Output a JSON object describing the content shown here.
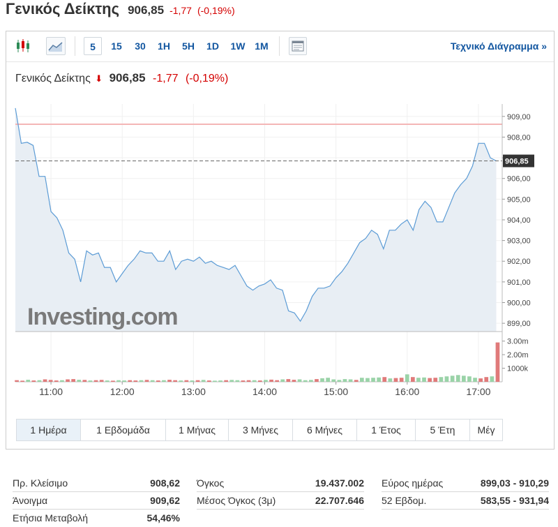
{
  "header": {
    "name": "Γενικός Δείκτης",
    "price": "906,85",
    "change": "-1,77",
    "change_pct": "(-0,19%)"
  },
  "toolbar": {
    "timeframes": [
      "5",
      "15",
      "30",
      "1H",
      "5H",
      "1D",
      "1W",
      "1M"
    ],
    "active_timeframe": "5",
    "technical_link": "Τεχνικό Διάγραμμα »"
  },
  "inner_title": {
    "name": "Γενικός Δείκτης",
    "price": "906,85",
    "change": "-1,77",
    "change_pct": "(-0,19%)"
  },
  "watermark": "Investing.com",
  "colors": {
    "line": "#5b9bd5",
    "area": "#e8eef4",
    "down": "#d40000",
    "vol_up": "#9ad3a8",
    "vol_down": "#e07a7a",
    "prev_close_line": "#f4b6b6",
    "link": "#1256a0"
  },
  "ranges": [
    "1 Ημέρα",
    "1 Εβδομάδα",
    "1 Μήνας",
    "3 Μήνες",
    "6 Μήνες",
    "1 Έτος",
    "5 Έτη",
    "Μέγ"
  ],
  "active_range": "1 Ημέρα",
  "stats": {
    "col1": [
      {
        "label": "Πρ. Κλείσιμο",
        "value": "908,62"
      },
      {
        "label": "Άνοιγμα",
        "value": "909,62"
      },
      {
        "label": "Ετήσια Μεταβολή",
        "value": "54,46%"
      }
    ],
    "col2": [
      {
        "label": "Όγκος",
        "value": "19.437.002"
      },
      {
        "label": "Μέσος Όγκος (3μ)",
        "value": "22.707.646"
      }
    ],
    "col3": [
      {
        "label": "Εύρος ημέρας",
        "value": "899,03 - 910,29"
      },
      {
        "label": "52 Εβδομ.",
        "value": "583,55 - 931,94"
      }
    ]
  },
  "chart_data": {
    "type": "area",
    "title": "Γενικός Δείκτης",
    "x_ticks": [
      "11:00",
      "12:00",
      "13:00",
      "14:00",
      "15:00",
      "16:00",
      "17:00"
    ],
    "x_start": "10:30",
    "x_end": "17:20",
    "y_ticks": [
      "899,00",
      "900,00",
      "901,00",
      "902,00",
      "903,00",
      "904,00",
      "905,00",
      "906,00",
      "907,00",
      "908,00",
      "909,00"
    ],
    "ylim": [
      898.6,
      909.6
    ],
    "current_value": 906.85,
    "current_label": "906,85",
    "prev_close": 908.62,
    "series": [
      {
        "x": [
          "10:30",
          "10:35",
          "10:40",
          "10:45",
          "10:50",
          "10:55",
          "11:00",
          "11:05",
          "11:10",
          "11:15",
          "11:20",
          "11:25",
          "11:30",
          "11:35",
          "11:40",
          "11:45",
          "11:50",
          "11:55",
          "12:00",
          "12:05",
          "12:10",
          "12:15",
          "12:20",
          "12:25",
          "12:30",
          "12:35",
          "12:40",
          "12:45",
          "12:50",
          "12:55",
          "13:00",
          "13:05",
          "13:10",
          "13:15",
          "13:20",
          "13:25",
          "13:30",
          "13:35",
          "13:40",
          "13:45",
          "13:50",
          "13:55",
          "14:00",
          "14:05",
          "14:10",
          "14:15",
          "14:20",
          "14:25",
          "14:30",
          "14:35",
          "14:40",
          "14:45",
          "14:50",
          "14:55",
          "15:00",
          "15:05",
          "15:10",
          "15:15",
          "15:20",
          "15:25",
          "15:30",
          "15:35",
          "15:40",
          "15:45",
          "15:50",
          "15:55",
          "16:00",
          "16:05",
          "16:10",
          "16:15",
          "16:20",
          "16:25",
          "16:30",
          "16:35",
          "16:40",
          "16:45",
          "16:50",
          "16:55",
          "17:00",
          "17:05",
          "17:10",
          "17:15"
        ],
        "values": [
          909.4,
          907.7,
          907.75,
          907.6,
          906.1,
          906.1,
          904.4,
          904.1,
          903.5,
          902.4,
          902.1,
          901.0,
          902.5,
          902.3,
          902.4,
          901.7,
          901.7,
          901.0,
          901.4,
          901.8,
          902.1,
          902.5,
          902.4,
          902.4,
          902.0,
          902.0,
          902.5,
          901.6,
          902.0,
          902.1,
          902.0,
          902.2,
          901.9,
          902.0,
          901.8,
          901.7,
          901.6,
          901.8,
          901.3,
          900.8,
          900.6,
          900.8,
          900.9,
          901.1,
          900.7,
          900.6,
          899.6,
          899.5,
          899.1,
          899.6,
          900.3,
          900.7,
          900.7,
          900.8,
          901.2,
          901.5,
          901.9,
          902.4,
          902.9,
          903.1,
          903.5,
          903.3,
          902.6,
          903.5,
          903.5,
          903.8,
          904.0,
          903.5,
          904.5,
          904.9,
          904.6,
          903.9,
          903.9,
          904.6,
          905.3,
          905.7,
          906.0,
          906.6,
          907.7,
          907.7,
          907.0,
          906.85
        ]
      }
    ],
    "volume": {
      "y_ticks": [
        "1000k",
        "2.00m",
        "3.00m"
      ],
      "ylim": [
        0,
        3.6
      ],
      "values_m": [
        0.12,
        0.08,
        0.15,
        0.1,
        0.12,
        0.18,
        0.14,
        0.1,
        0.12,
        0.18,
        0.2,
        0.15,
        0.14,
        0.1,
        0.12,
        0.14,
        0.1,
        0.08,
        0.12,
        0.1,
        0.12,
        0.1,
        0.12,
        0.14,
        0.12,
        0.1,
        0.12,
        0.15,
        0.12,
        0.1,
        0.12,
        0.1,
        0.12,
        0.14,
        0.1,
        0.08,
        0.1,
        0.12,
        0.14,
        0.12,
        0.1,
        0.12,
        0.12,
        0.1,
        0.14,
        0.16,
        0.12,
        0.18,
        0.2,
        0.15,
        0.18,
        0.12,
        0.14,
        0.2,
        0.26,
        0.3,
        0.18,
        0.14,
        0.2,
        0.18,
        0.14,
        0.3,
        0.28,
        0.3,
        0.32,
        0.35,
        0.25,
        0.28,
        0.3,
        0.55,
        0.35,
        0.3,
        0.32,
        0.28,
        0.3,
        0.35,
        0.4,
        0.45,
        0.5,
        0.45,
        0.4,
        0.3,
        0.25,
        0.35,
        0.4,
        2.9
      ],
      "directions": [
        "d",
        "d",
        "u",
        "d",
        "u",
        "d",
        "d",
        "d",
        "u",
        "d",
        "d",
        "u",
        "d",
        "u",
        "d",
        "d",
        "u",
        "d",
        "u",
        "u",
        "d",
        "d",
        "u",
        "d",
        "u",
        "d",
        "u",
        "d",
        "d",
        "u",
        "d",
        "u",
        "d",
        "u",
        "d",
        "u",
        "u",
        "d",
        "u",
        "u",
        "d",
        "d",
        "u",
        "d",
        "u",
        "d",
        "d",
        "u",
        "d",
        "d",
        "u",
        "u",
        "u",
        "d",
        "u",
        "u",
        "u",
        "u",
        "u",
        "u",
        "d",
        "u",
        "u",
        "u",
        "u",
        "d",
        "u",
        "d",
        "d",
        "u",
        "d",
        "u",
        "u",
        "d",
        "d",
        "u",
        "u",
        "u",
        "u",
        "u",
        "u",
        "u",
        "d",
        "d",
        "u",
        "d"
      ]
    }
  }
}
